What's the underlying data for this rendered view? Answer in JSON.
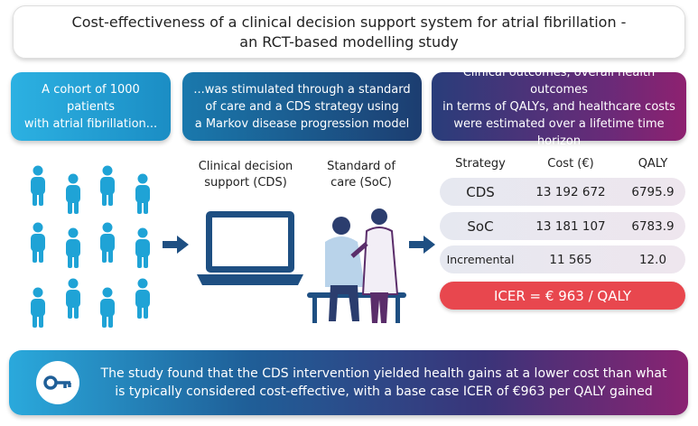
{
  "title": {
    "line1": "Cost-effectiveness of a clinical decision support system for atrial fibrillation -",
    "line2": "an RCT-based modelling study"
  },
  "boxes": [
    {
      "line1": "A cohort of 1000 patients",
      "line2": "with atrial fibrillation..."
    },
    {
      "line1": "...was stimulated through a standard",
      "line2": "of care and a CDS strategy using",
      "line3": "a Markov disease progression model"
    },
    {
      "line1": "Clinical outcomes, overall health outcomes",
      "line2": "in terms of QALYs, and healthcare costs",
      "line3": "were estimated over a lifetime time horizon"
    }
  ],
  "labels": {
    "cds_line1": "Clinical decision",
    "cds_line2": "support (CDS)",
    "soc_line1": "Standard of",
    "soc_line2": "care (SoC)"
  },
  "table": {
    "headers": [
      "Strategy",
      "Cost (€)",
      "QALY"
    ],
    "rows": [
      [
        "CDS",
        "13 192 672",
        "6795.9"
      ],
      [
        "SoC",
        "13 181 107",
        "6783.9"
      ],
      [
        "Incremental",
        "11 565",
        "12.0"
      ]
    ],
    "icer": "ICER = € 963 / QALY"
  },
  "banner": {
    "line1": "The study found that the CDS intervention yielded health gains at a lower cost than what",
    "line2": "is typically considered cost-effective, with a base case ICER of €963 per QALY gained"
  },
  "colors": {
    "people": "#1fa3d6",
    "arrow": "#1e4f82",
    "icer": "#e8474e"
  }
}
